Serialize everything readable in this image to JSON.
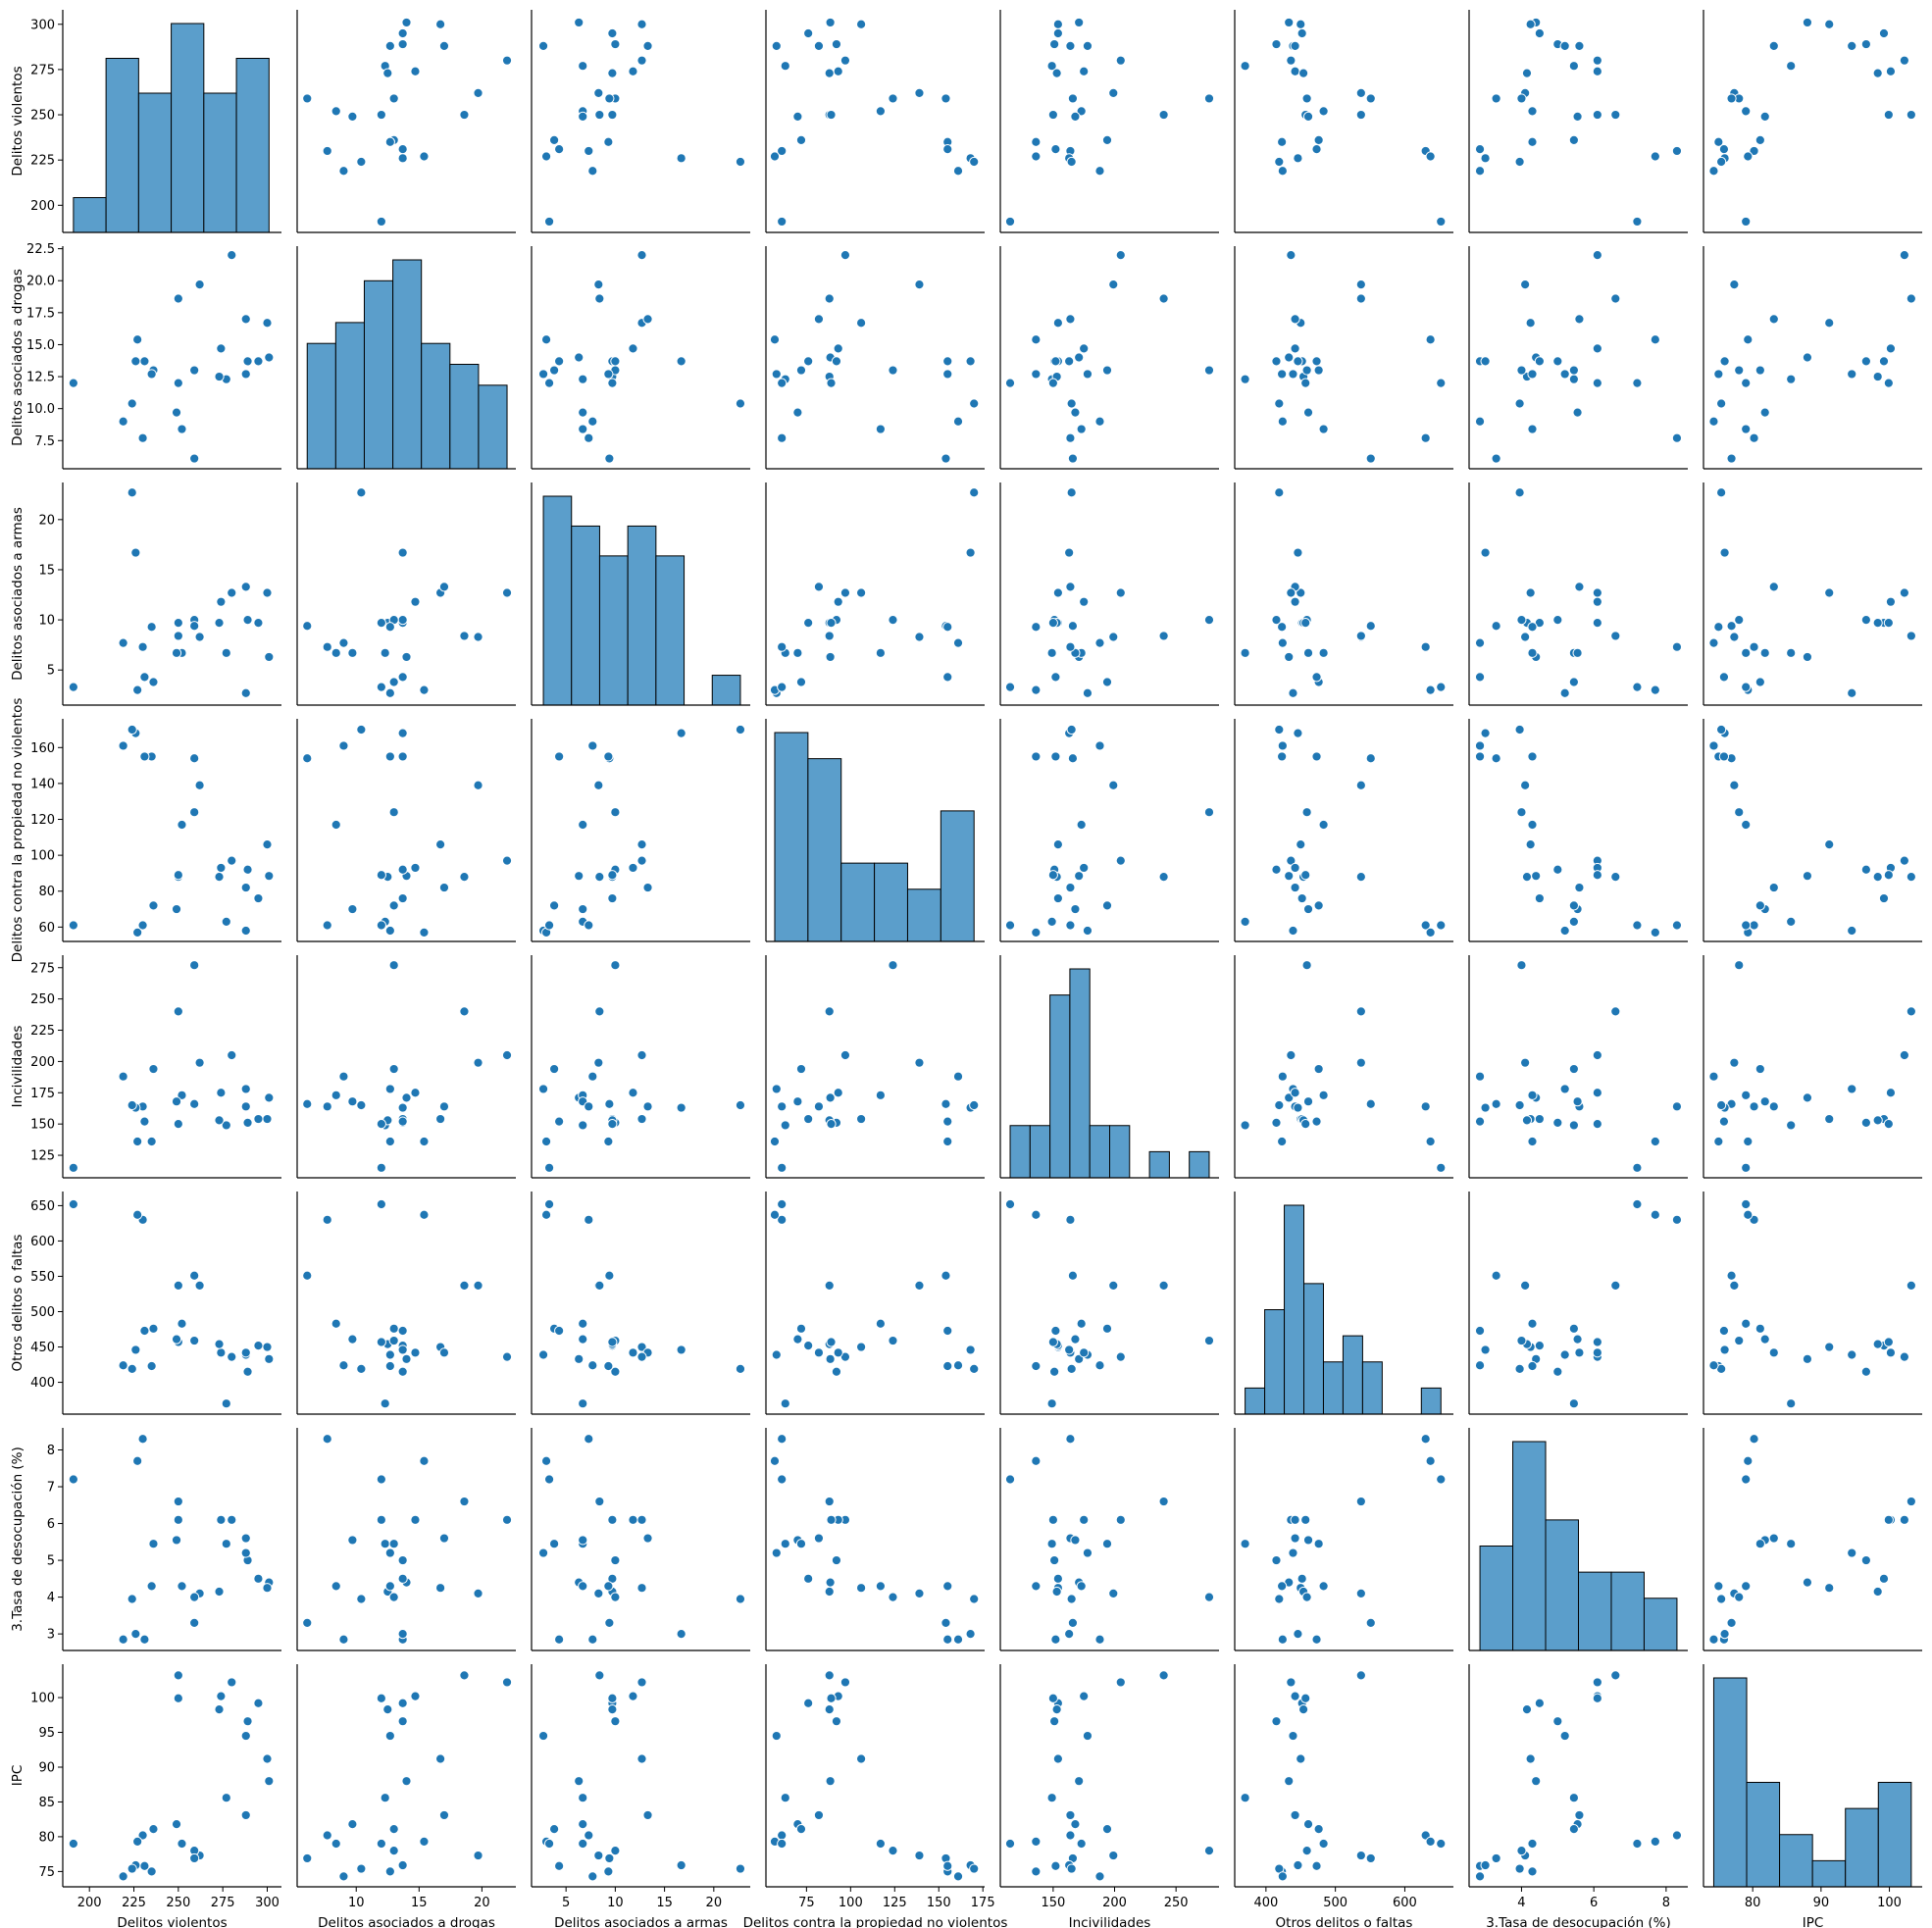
{
  "figure": {
    "title": "",
    "accent_color": "#1f77b4",
    "hist_color": "#5b9ecb"
  },
  "chart_data": {
    "type": "scatter",
    "subtype": "pairplot",
    "grid": false,
    "variables": [
      {
        "key": "dv",
        "label": "Delitos violentos",
        "range": [
          185,
          308
        ],
        "ticks": [
          200,
          225,
          250,
          275,
          300
        ],
        "tick_labels": [
          "200",
          "225",
          "250",
          "275",
          "300"
        ]
      },
      {
        "key": "dr",
        "label": "Delitos asociados a drogas",
        "range": [
          5.3,
          22.7
        ],
        "ticks": [
          10,
          15,
          20
        ],
        "tick_labels": [
          "10",
          "15",
          "20"
        ],
        "y_ticks": [
          7.5,
          10.0,
          12.5,
          15.0,
          17.5,
          20.0,
          22.5
        ],
        "y_tick_labels": [
          "7.5",
          "10.0",
          "12.5",
          "15.0",
          "17.5",
          "20.0",
          "22.5"
        ]
      },
      {
        "key": "ar",
        "label": "Delitos asociados a armas",
        "range": [
          1.5,
          23.7
        ],
        "ticks": [
          5,
          10,
          15,
          20
        ],
        "tick_labels": [
          "5",
          "10",
          "15",
          "20"
        ]
      },
      {
        "key": "pn",
        "label": "Delitos contra la propiedad no violentos",
        "range": [
          52,
          176
        ],
        "ticks": [
          75,
          100,
          125,
          150,
          175
        ],
        "tick_labels": [
          "75",
          "100",
          "125",
          "150",
          "175"
        ],
        "y_ticks": [
          60,
          80,
          100,
          120,
          140,
          160
        ],
        "y_tick_labels": [
          "60",
          "80",
          "100",
          "120",
          "140",
          "160"
        ]
      },
      {
        "key": "in",
        "label": "Incivilidades",
        "range": [
          107,
          285
        ],
        "ticks": [
          150,
          200,
          250
        ],
        "tick_labels": [
          "150",
          "200",
          "250"
        ],
        "y_ticks": [
          125,
          150,
          175,
          200,
          225,
          250,
          275
        ],
        "y_tick_labels": [
          "125",
          "150",
          "175",
          "200",
          "225",
          "250",
          "275"
        ]
      },
      {
        "key": "ot",
        "label": "Otros delitos o faltas",
        "range": [
          355,
          670
        ],
        "ticks": [
          400,
          500,
          600
        ],
        "tick_labels": [
          "400",
          "500",
          "600"
        ],
        "y_ticks": [
          400,
          450,
          500,
          550,
          600,
          650
        ],
        "y_tick_labels": [
          "400",
          "450",
          "500",
          "550",
          "600",
          "650"
        ]
      },
      {
        "key": "td",
        "label": "3.Tasa de desocupación (%)",
        "range": [
          2.55,
          8.6
        ],
        "ticks": [
          4,
          6,
          8
        ],
        "tick_labels": [
          "4",
          "6",
          "8"
        ],
        "y_ticks": [
          3,
          4,
          5,
          6,
          7,
          8
        ],
        "y_tick_labels": [
          "3",
          "4",
          "5",
          "6",
          "7",
          "8"
        ]
      },
      {
        "key": "ipc",
        "label": "IPC",
        "range": [
          72.8,
          104.8
        ],
        "ticks": [
          80,
          90,
          100
        ],
        "tick_labels": [
          "80",
          "90",
          "100"
        ],
        "y_ticks": [
          75,
          80,
          85,
          90,
          95,
          100
        ],
        "y_tick_labels": [
          "75",
          "80",
          "85",
          "90",
          "95",
          "100"
        ]
      }
    ],
    "records": [
      [
        301,
        14.0,
        6.3,
        88.5,
        171,
        433,
        4.4,
        88.0
      ],
      [
        300,
        16.7,
        12.7,
        106,
        154,
        450,
        4.25,
        91.2
      ],
      [
        295,
        13.7,
        9.7,
        76,
        154,
        452,
        4.5,
        99.2
      ],
      [
        289,
        13.7,
        10.0,
        92,
        151,
        415,
        5.0,
        96.6
      ],
      [
        288,
        12.7,
        2.7,
        58,
        178,
        439,
        5.2,
        94.5
      ],
      [
        288,
        17.0,
        13.3,
        82,
        164,
        442,
        5.6,
        83.1
      ],
      [
        280,
        22.0,
        12.7,
        97,
        205,
        436,
        6.1,
        102.2
      ],
      [
        277,
        12.3,
        6.7,
        63,
        149,
        370,
        5.45,
        85.6
      ],
      [
        274,
        14.7,
        11.8,
        93,
        175,
        442,
        6.1,
        100.2
      ],
      [
        273,
        12.5,
        9.7,
        88,
        153,
        454,
        4.15,
        98.3
      ],
      [
        262,
        19.7,
        8.3,
        139,
        199,
        537,
        4.1,
        77.3
      ],
      [
        259,
        13.0,
        10.0,
        124,
        277,
        459,
        4.0,
        78.0
      ],
      [
        259,
        6.1,
        9.4,
        154,
        166,
        551,
        3.3,
        76.9
      ],
      [
        252,
        8.4,
        6.7,
        117,
        173,
        483,
        4.3,
        79.0
      ],
      [
        250,
        18.6,
        8.4,
        88,
        240,
        537,
        6.6,
        103.2
      ],
      [
        250,
        12.0,
        9.7,
        89,
        150,
        457,
        6.1,
        99.9
      ],
      [
        249,
        9.7,
        6.7,
        70,
        168,
        461,
        5.55,
        81.8
      ],
      [
        236,
        13.0,
        3.8,
        72,
        194,
        476,
        5.45,
        81.1
      ],
      [
        235,
        12.7,
        9.3,
        155,
        136,
        423,
        4.3,
        75.0
      ],
      [
        231,
        13.7,
        4.3,
        155,
        152,
        473,
        2.85,
        75.8
      ],
      [
        230,
        7.7,
        7.3,
        61,
        164,
        630,
        8.3,
        80.2
      ],
      [
        227,
        15.4,
        3.0,
        57,
        136,
        637,
        7.7,
        79.3
      ],
      [
        226,
        13.7,
        16.7,
        168,
        163,
        446,
        3.0,
        75.9
      ],
      [
        224,
        10.4,
        22.7,
        170,
        165,
        419,
        3.95,
        75.4
      ],
      [
        219,
        9.0,
        7.7,
        161,
        188,
        424,
        2.85,
        74.3
      ],
      [
        191,
        12.0,
        3.3,
        61,
        115,
        652,
        7.2,
        79.0
      ]
    ],
    "diagonal_histograms": [
      {
        "variable": "Delitos violentos",
        "bins": 6,
        "range": [
          191,
          301
        ],
        "counts": [
          1,
          5,
          4,
          6,
          4,
          5
        ]
      },
      {
        "variable": "Delitos asociados a drogas",
        "bins": 7,
        "range": [
          6.1,
          22.0
        ],
        "counts": [
          3,
          3.5,
          4.5,
          5,
          3,
          2.5,
          2
        ]
      },
      {
        "variable": "Delitos asociados a armas",
        "bins": 7,
        "range": [
          2.7,
          22.7
        ],
        "counts": [
          7,
          6,
          5,
          6,
          5,
          0,
          1
        ]
      },
      {
        "variable": "Delitos contra la propiedad no violentos",
        "bins": 6,
        "range": [
          57,
          170
        ],
        "counts": [
          8,
          7,
          3,
          3,
          2,
          5
        ]
      },
      {
        "variable": "Incivilidades",
        "bins": 10,
        "range": [
          115,
          277
        ],
        "counts": [
          2,
          2,
          7,
          8,
          2,
          2,
          0,
          1,
          0,
          1
        ]
      },
      {
        "variable": "Otros delitos o faltas",
        "bins": 10,
        "range": [
          370,
          652
        ],
        "counts": [
          1,
          4,
          8,
          5,
          2,
          3,
          2,
          0,
          0,
          1
        ]
      },
      {
        "variable": "3.Tasa de desocupación (%)",
        "bins": 6,
        "range": [
          2.85,
          8.3
        ],
        "counts": [
          4,
          8,
          5,
          3,
          3,
          2
        ]
      },
      {
        "variable": "IPC",
        "bins": 6,
        "range": [
          74.3,
          103.2
        ],
        "counts": [
          8,
          4,
          2,
          1,
          3,
          4
        ]
      }
    ]
  }
}
